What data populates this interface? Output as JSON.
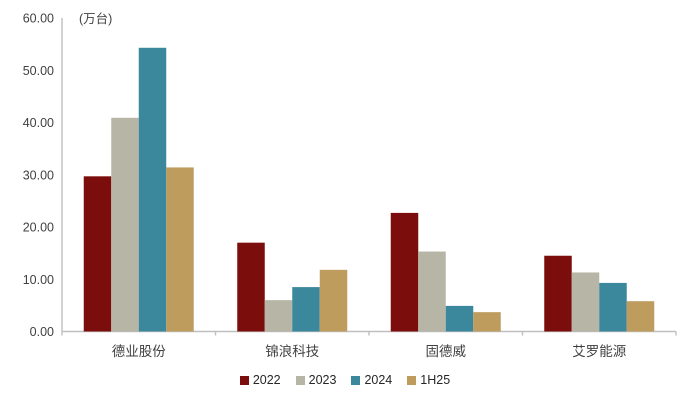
{
  "chart_data": {
    "type": "bar",
    "title": "",
    "unit_label": "(万台)",
    "categories": [
      "德业股份",
      "锦浪科技",
      "固德威",
      "艾罗能源"
    ],
    "series": [
      {
        "name": "2022",
        "color": "#7B0D0D",
        "values": [
          29.7,
          17.0,
          22.7,
          14.5
        ]
      },
      {
        "name": "2023",
        "color": "#B7B5A5",
        "values": [
          40.9,
          6.0,
          15.3,
          11.3
        ]
      },
      {
        "name": "2024",
        "color": "#3B879C",
        "values": [
          54.3,
          8.5,
          4.9,
          9.3
        ]
      },
      {
        "name": "1H25",
        "color": "#BD9C5E",
        "values": [
          31.4,
          11.8,
          3.7,
          5.8
        ]
      }
    ],
    "ylim": [
      0,
      60
    ],
    "ytick_step": 10,
    "ytick_labels": [
      "0.00",
      "10.00",
      "20.00",
      "30.00",
      "40.00",
      "50.00",
      "60.00"
    ],
    "grid": false,
    "legend_position": "bottom",
    "colors": {
      "axis_line": "#BFBFBF",
      "tick_text": "#404040",
      "category_text": "#404040",
      "legend_text": "#262626",
      "background": "#FFFFFF"
    }
  }
}
